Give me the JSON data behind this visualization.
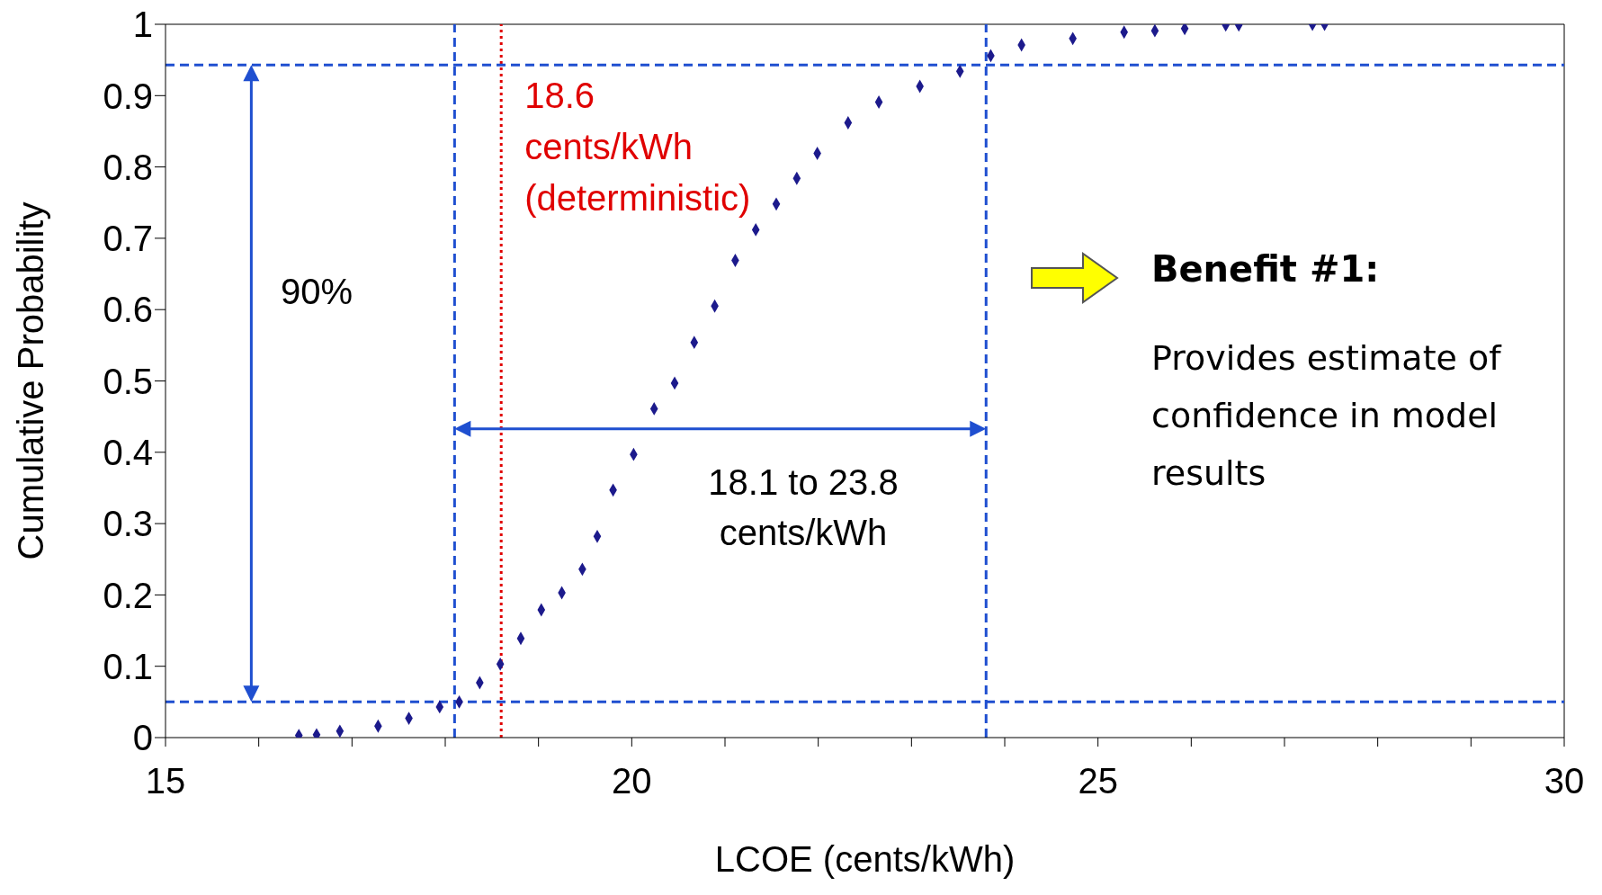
{
  "chart_data": {
    "type": "scatter",
    "xlabel": "LCOE (cents/kWh)",
    "ylabel": "Cumulative Probability",
    "x": [
      16.43,
      16.62,
      16.87,
      17.28,
      17.61,
      17.94,
      18.15,
      18.37,
      18.59,
      18.81,
      19.03,
      19.25,
      19.47,
      19.63,
      19.8,
      20.02,
      20.24,
      20.46,
      20.67,
      20.89,
      21.11,
      21.33,
      21.55,
      21.77,
      21.99,
      22.32,
      22.65,
      23.09,
      23.52,
      23.85,
      24.18,
      24.73,
      25.28,
      25.61,
      25.93,
      26.37,
      26.51,
      27.3,
      27.43
    ],
    "series": [
      {
        "color": "#1c1a8c",
        "values": [
          0.003,
          0.004,
          0.009,
          0.016,
          0.027,
          0.043,
          0.05,
          0.077,
          0.103,
          0.139,
          0.179,
          0.203,
          0.236,
          0.282,
          0.347,
          0.397,
          0.461,
          0.497,
          0.554,
          0.605,
          0.669,
          0.712,
          0.748,
          0.784,
          0.819,
          0.862,
          0.891,
          0.913,
          0.934,
          0.956,
          0.971,
          0.98,
          0.989,
          0.991,
          0.994,
          0.999,
          0.999,
          1.0,
          1.0
        ]
      }
    ],
    "marker": "diamond",
    "xlim": [
      15,
      30
    ],
    "xticks": [
      15,
      {
        "value": 16,
        "label": null
      },
      {
        "value": 17,
        "label": null
      },
      {
        "value": 18,
        "label": null
      },
      {
        "value": 19,
        "label": null
      },
      20,
      {
        "value": 21,
        "label": null
      },
      {
        "value": 22,
        "label": null
      },
      {
        "value": 23,
        "label": null
      },
      {
        "value": 24,
        "label": null
      },
      25,
      {
        "value": 26,
        "label": null
      },
      {
        "value": 27,
        "label": null
      },
      {
        "value": 28,
        "label": null
      },
      {
        "value": 29,
        "label": null
      },
      30
    ],
    "ylim": [
      0,
      1
    ],
    "yticks": [
      0,
      0.1,
      0.2,
      0.3,
      0.4,
      0.5,
      0.6,
      0.7,
      0.8,
      0.9,
      1
    ],
    "ref_lines": [
      {
        "axis": "x",
        "value": 18.6,
        "label": "18.6 cents/kWh (deterministic)",
        "color": "#e00000",
        "line_style": "dotted"
      },
      {
        "axis": "x",
        "value": 18.1,
        "color": "#1f4fd0",
        "line_style": "dashed"
      },
      {
        "axis": "x",
        "value": 23.8,
        "color": "#1f4fd0",
        "line_style": "dashed"
      },
      {
        "axis": "y",
        "value": 0.05,
        "color": "#1f4fd0",
        "line_style": "dashed"
      },
      {
        "axis": "y",
        "value": 0.943,
        "color": "#1f4fd0",
        "line_style": "dashed"
      }
    ],
    "annotations": [
      "90%",
      "18.1 to 23.8 cents/kWh",
      "Benefit #1:",
      "Provides estimate of confidence in model results"
    ],
    "tick_labels": [
      "x",
      "y"
    ]
  }
}
